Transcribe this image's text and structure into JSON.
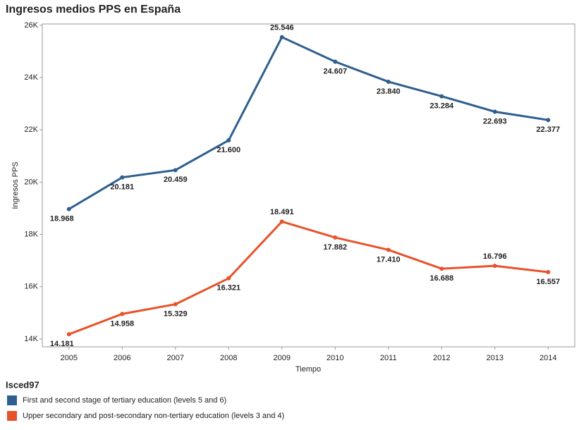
{
  "chart_data": {
    "type": "line",
    "title": "Ingresos medios PPS en España",
    "x_label": "Tiempo",
    "y_label": "Ingresos PPS",
    "categories": [
      "2005",
      "2006",
      "2007",
      "2008",
      "2009",
      "2010",
      "2011",
      "2012",
      "2013",
      "2014"
    ],
    "series": [
      {
        "name": "First and second stage of tertiary education (levels 5 and 6)",
        "color": "#2e5f8f",
        "values": [
          18968,
          20181,
          20459,
          21600,
          25546,
          24607,
          23840,
          23284,
          22693,
          22377
        ],
        "value_labels": [
          "18.968",
          "20.181",
          "20.459",
          "21.600",
          "25.546",
          "24.607",
          "23.840",
          "23.284",
          "22.693",
          "22.377"
        ]
      },
      {
        "name": "Upper secondary and post-secondary non-tertiary education (levels 3 and 4)",
        "color": "#e8522a",
        "values": [
          14181,
          14958,
          15329,
          16321,
          18491,
          17882,
          17410,
          16688,
          16796,
          16557
        ],
        "value_labels": [
          "14.181",
          "14.958",
          "15.329",
          "16.321",
          "18.491",
          "17.882",
          "17.410",
          "16.688",
          "16.796",
          "16.557"
        ]
      }
    ],
    "legend_title": "Isced97",
    "ylim": [
      13700,
      26050
    ],
    "yticks": [
      {
        "value": 14000,
        "label": "14K"
      },
      {
        "value": 16000,
        "label": "16K"
      },
      {
        "value": 18000,
        "label": "18K"
      },
      {
        "value": 20000,
        "label": "20K"
      },
      {
        "value": 22000,
        "label": "22K"
      },
      {
        "value": 24000,
        "label": "24K"
      },
      {
        "value": 26000,
        "label": "26K"
      }
    ],
    "grid": false
  }
}
